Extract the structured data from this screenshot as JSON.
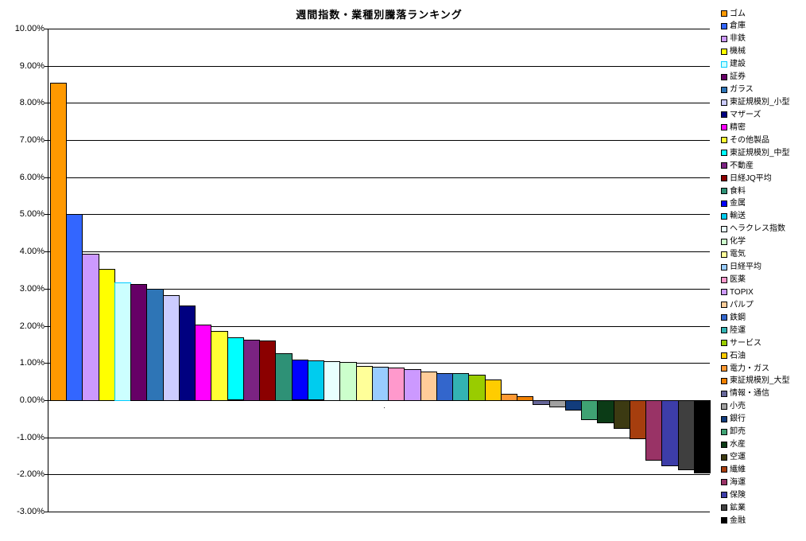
{
  "page": {
    "background": "#FFFFFF",
    "gridline_color": "#000000",
    "axis_color": "#000000"
  },
  "chart_data": {
    "type": "bar",
    "title": "週間指数・業種別騰落ランキング",
    "xlabel": "",
    "ylabel": "",
    "ylim": [
      -3,
      10
    ],
    "grid": true,
    "legend_position": "right",
    "x_axis_mark": "·",
    "y_ticks": [
      {
        "label": "10.00%",
        "value": 10
      },
      {
        "label": "9.00%",
        "value": 9
      },
      {
        "label": "8.00%",
        "value": 8
      },
      {
        "label": "7.00%",
        "value": 7
      },
      {
        "label": "6.00%",
        "value": 6
      },
      {
        "label": "5.00%",
        "value": 5
      },
      {
        "label": "4.00%",
        "value": 4
      },
      {
        "label": "3.00%",
        "value": 3
      },
      {
        "label": "2.00%",
        "value": 2
      },
      {
        "label": "1.00%",
        "value": 1
      },
      {
        "label": "0.00%",
        "value": 0
      },
      {
        "label": "-1.00%",
        "value": -1
      },
      {
        "label": "-2.00%",
        "value": -2
      },
      {
        "label": "-3.00%",
        "value": -3
      }
    ],
    "series": [
      {
        "name": "ゴム",
        "value": 8.55,
        "color": "#FF9900"
      },
      {
        "name": "倉庫",
        "value": 5.02,
        "color": "#3366FF"
      },
      {
        "name": "非鉄",
        "value": 3.93,
        "color": "#CC99FF"
      },
      {
        "name": "機械",
        "value": 3.54,
        "color": "#FFFF00"
      },
      {
        "name": "建設",
        "value": 3.16,
        "color": "#CCFFFF",
        "border": "#00CCFF"
      },
      {
        "name": "証券",
        "value": 3.13,
        "color": "#660066"
      },
      {
        "name": "ガラス",
        "value": 3.0,
        "color": "#2E75B6"
      },
      {
        "name": "東証規模別_小型",
        "value": 2.82,
        "color": "#CCCCFF"
      },
      {
        "name": "マザーズ",
        "value": 2.54,
        "color": "#000080"
      },
      {
        "name": "精密",
        "value": 2.04,
        "color": "#FF00FF"
      },
      {
        "name": "その他製品",
        "value": 1.86,
        "color": "#FFFF33"
      },
      {
        "name": "東証規模別_中型",
        "value": 1.68,
        "color": "#00FFFF"
      },
      {
        "name": "不動産",
        "value": 1.63,
        "color": "#7B2382"
      },
      {
        "name": "日経JQ平均",
        "value": 1.61,
        "color": "#8B0000"
      },
      {
        "name": "食料",
        "value": 1.27,
        "color": "#2E9176"
      },
      {
        "name": "金属",
        "value": 1.08,
        "color": "#0000FF"
      },
      {
        "name": "輸送",
        "value": 1.06,
        "color": "#00CCEE"
      },
      {
        "name": "ヘラクレス指数",
        "value": 1.04,
        "color": "#E8FFFF"
      },
      {
        "name": "化学",
        "value": 1.02,
        "color": "#CCFFCC"
      },
      {
        "name": "電気",
        "value": 0.92,
        "color": "#FFFF99"
      },
      {
        "name": "日経平均",
        "value": 0.89,
        "color": "#99CCFF"
      },
      {
        "name": "医薬",
        "value": 0.87,
        "color": "#FF99CC"
      },
      {
        "name": "TOPIX",
        "value": 0.83,
        "color": "#CC99FF"
      },
      {
        "name": "パルプ",
        "value": 0.77,
        "color": "#FFCC99"
      },
      {
        "name": "鉄鋼",
        "value": 0.73,
        "color": "#3366CC"
      },
      {
        "name": "陸運",
        "value": 0.72,
        "color": "#33B3B3"
      },
      {
        "name": "サービス",
        "value": 0.68,
        "color": "#99CC00"
      },
      {
        "name": "石油",
        "value": 0.55,
        "color": "#FFCC00"
      },
      {
        "name": "電力・ガス",
        "value": 0.17,
        "color": "#FF9933"
      },
      {
        "name": "東証規模別_大型",
        "value": 0.1,
        "color": "#F08000"
      },
      {
        "name": "情報・通信",
        "value": -0.1,
        "color": "#666699"
      },
      {
        "name": "小売",
        "value": -0.18,
        "color": "#A0A0A0"
      },
      {
        "name": "銀行",
        "value": -0.25,
        "color": "#123C7C"
      },
      {
        "name": "卸売",
        "value": -0.52,
        "color": "#3FA273"
      },
      {
        "name": "水産",
        "value": -0.6,
        "color": "#0B3B16"
      },
      {
        "name": "空運",
        "value": -0.74,
        "color": "#3C3A12"
      },
      {
        "name": "繊維",
        "value": -1.03,
        "color": "#A63E0E"
      },
      {
        "name": "海運",
        "value": -1.6,
        "color": "#993366"
      },
      {
        "name": "保険",
        "value": -1.76,
        "color": "#3D3DA8"
      },
      {
        "name": "鉱業",
        "value": -1.87,
        "color": "#3F3F3F"
      },
      {
        "name": "金融",
        "value": -1.94,
        "color": "#000000"
      }
    ]
  }
}
